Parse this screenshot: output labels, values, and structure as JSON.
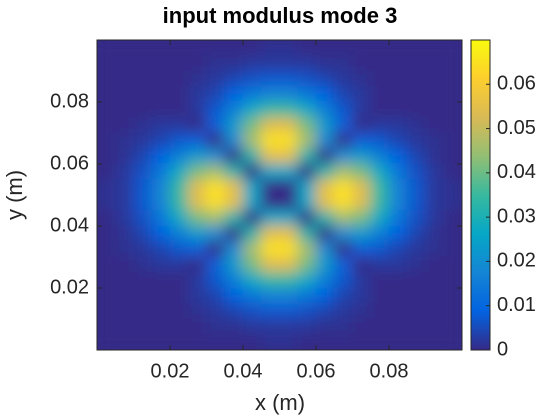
{
  "chart_data": {
    "type": "heatmap",
    "title": "input modulus mode 3",
    "xlabel": "x (m)",
    "ylabel": "y (m)",
    "xlim": [
      0,
      0.1
    ],
    "ylim": [
      0,
      0.1
    ],
    "xticks": [
      0.02,
      0.04,
      0.06,
      0.08
    ],
    "yticks": [
      0.02,
      0.04,
      0.06,
      0.08
    ],
    "clim": [
      0,
      0.07
    ],
    "cticks": [
      0,
      0.01,
      0.02,
      0.03,
      0.04,
      0.05,
      0.06
    ],
    "colormap": [
      "#352a87",
      "#0363e1",
      "#1485d4",
      "#06a7c6",
      "#38b99e",
      "#92bf73",
      "#d9ba56",
      "#fcce2e",
      "#f9fb0e"
    ],
    "z": [
      [
        0,
        0,
        0,
        0,
        0,
        0,
        0,
        0,
        0,
        0.001,
        0.001,
        0,
        0,
        0,
        0,
        0,
        0,
        0,
        0,
        0
      ],
      [
        0,
        0,
        0,
        0,
        0,
        0,
        0.001,
        0.001,
        0.002,
        0.002,
        0.002,
        0.002,
        0.001,
        0.001,
        0,
        0,
        0,
        0,
        0,
        0
      ],
      [
        0,
        0,
        0,
        0,
        0,
        0.001,
        0.002,
        0.004,
        0.006,
        0.007,
        0.007,
        0.006,
        0.004,
        0.002,
        0.001,
        0,
        0,
        0,
        0,
        0
      ],
      [
        0,
        0,
        0,
        0,
        0,
        0.002,
        0.004,
        0.009,
        0.014,
        0.017,
        0.017,
        0.014,
        0.009,
        0.004,
        0.002,
        0,
        0,
        0,
        0,
        0
      ],
      [
        0,
        0,
        0,
        0,
        0,
        0.002,
        0.007,
        0.016,
        0.027,
        0.034,
        0.034,
        0.027,
        0.016,
        0.007,
        0.002,
        0,
        0,
        0,
        0,
        0
      ],
      [
        0,
        0,
        0.001,
        0.002,
        0.002,
        0,
        0.008,
        0.023,
        0.041,
        0.054,
        0.054,
        0.041,
        0.023,
        0.008,
        0,
        0.002,
        0.002,
        0.001,
        0,
        0
      ],
      [
        0,
        0.001,
        0.002,
        0.004,
        0.007,
        0.008,
        0,
        0.019,
        0.046,
        0.065,
        0.065,
        0.046,
        0.019,
        0,
        0.008,
        0.007,
        0.004,
        0.002,
        0.001,
        0
      ],
      [
        0,
        0.001,
        0.004,
        0.009,
        0.016,
        0.023,
        0.019,
        0,
        0.031,
        0.055,
        0.055,
        0.031,
        0,
        0.019,
        0.023,
        0.016,
        0.009,
        0.004,
        0.001,
        0
      ],
      [
        0,
        0.002,
        0.006,
        0.014,
        0.027,
        0.041,
        0.046,
        0.031,
        0,
        0.026,
        0.026,
        0,
        0.031,
        0.046,
        0.041,
        0.027,
        0.014,
        0.006,
        0.002,
        0
      ],
      [
        0.001,
        0.002,
        0.007,
        0.017,
        0.034,
        0.054,
        0.065,
        0.055,
        0.026,
        0,
        0,
        0.026,
        0.055,
        0.065,
        0.054,
        0.034,
        0.017,
        0.007,
        0.002,
        0.001
      ],
      [
        0.001,
        0.002,
        0.007,
        0.017,
        0.034,
        0.054,
        0.065,
        0.055,
        0.026,
        0,
        0,
        0.026,
        0.055,
        0.065,
        0.054,
        0.034,
        0.017,
        0.007,
        0.002,
        0.001
      ],
      [
        0,
        0.002,
        0.006,
        0.014,
        0.027,
        0.041,
        0.046,
        0.031,
        0,
        0.026,
        0.026,
        0,
        0.031,
        0.046,
        0.041,
        0.027,
        0.014,
        0.006,
        0.002,
        0
      ],
      [
        0,
        0.001,
        0.004,
        0.009,
        0.016,
        0.023,
        0.019,
        0,
        0.031,
        0.055,
        0.055,
        0.031,
        0,
        0.019,
        0.023,
        0.016,
        0.009,
        0.004,
        0.001,
        0
      ],
      [
        0,
        0.001,
        0.002,
        0.004,
        0.007,
        0.008,
        0,
        0.019,
        0.046,
        0.065,
        0.065,
        0.046,
        0.019,
        0,
        0.008,
        0.007,
        0.004,
        0.002,
        0.001,
        0
      ],
      [
        0,
        0,
        0.001,
        0.002,
        0.002,
        0,
        0.008,
        0.023,
        0.041,
        0.054,
        0.054,
        0.041,
        0.023,
        0.008,
        0,
        0.002,
        0.002,
        0.001,
        0,
        0
      ],
      [
        0,
        0,
        0,
        0,
        0,
        0.002,
        0.007,
        0.016,
        0.027,
        0.034,
        0.034,
        0.027,
        0.016,
        0.007,
        0.002,
        0,
        0,
        0,
        0,
        0
      ],
      [
        0,
        0,
        0,
        0,
        0,
        0.002,
        0.004,
        0.009,
        0.014,
        0.017,
        0.017,
        0.014,
        0.009,
        0.004,
        0.002,
        0,
        0,
        0,
        0,
        0
      ],
      [
        0,
        0,
        0,
        0,
        0,
        0.001,
        0.002,
        0.004,
        0.006,
        0.007,
        0.007,
        0.006,
        0.004,
        0.002,
        0.001,
        0,
        0,
        0,
        0,
        0
      ],
      [
        0,
        0,
        0,
        0,
        0,
        0,
        0.001,
        0.001,
        0.002,
        0.002,
        0.002,
        0.002,
        0.001,
        0.001,
        0,
        0,
        0,
        0,
        0,
        0
      ],
      [
        0,
        0,
        0,
        0,
        0,
        0,
        0,
        0,
        0,
        0.001,
        0.001,
        0,
        0,
        0,
        0,
        0,
        0,
        0,
        0,
        0
      ]
    ]
  }
}
